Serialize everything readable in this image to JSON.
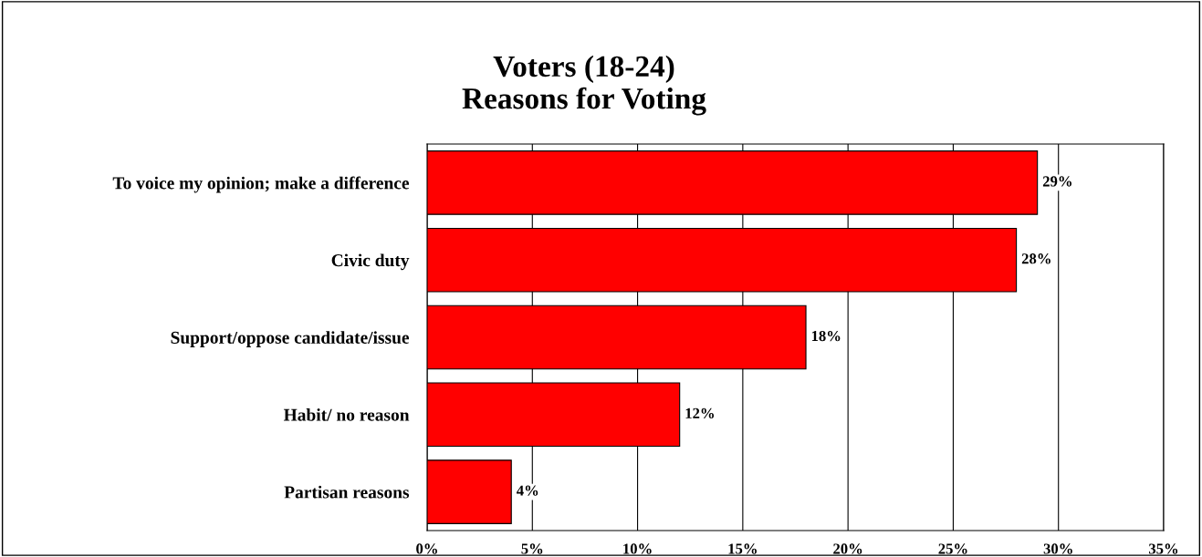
{
  "chart_data": {
    "type": "bar",
    "orientation": "horizontal",
    "title": "Voters (18-24)\nReasons for Voting",
    "categories": [
      "To voice my opinion; make a difference",
      "Civic duty",
      "Support/oppose candidate/issue",
      "Habit/ no reason",
      "Partisan reasons"
    ],
    "values": [
      29,
      28,
      18,
      12,
      4
    ],
    "value_labels": [
      "29%",
      "28%",
      "18%",
      "12%",
      "4%"
    ],
    "color": "#ff0000",
    "xlim": [
      0,
      35
    ],
    "xticks": [
      {
        "value": 0,
        "label": "0%"
      },
      {
        "value": 5,
        "label": "5%"
      },
      {
        "value": 10,
        "label": "10%"
      },
      {
        "value": 15,
        "label": "15%"
      },
      {
        "value": 20,
        "label": "20%"
      },
      {
        "value": 25,
        "label": "25%"
      },
      {
        "value": 30,
        "label": "30%"
      },
      {
        "value": 35,
        "label": "35%"
      }
    ],
    "grid": "x"
  }
}
